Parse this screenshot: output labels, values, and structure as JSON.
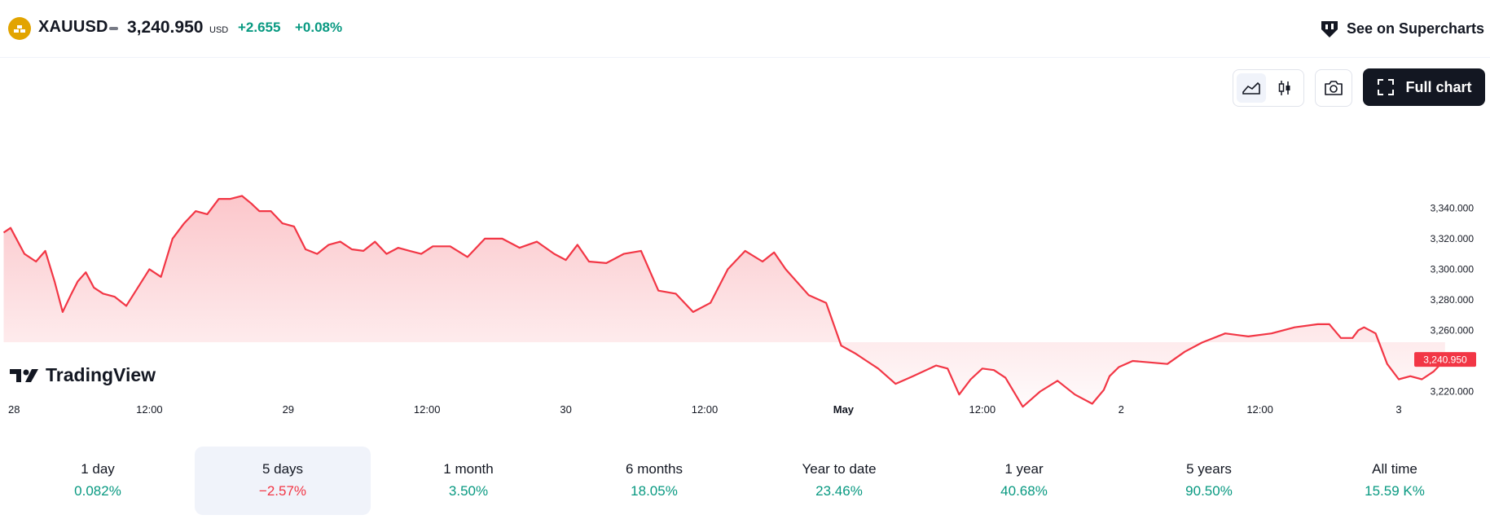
{
  "header": {
    "symbol": "XAUUSD",
    "price": "3,240.950",
    "currency": "USD",
    "change": "+2.655",
    "change_percent": "+0.08%",
    "supercharts_label": "See on Supercharts",
    "icons": [
      "gold-symbol-icon",
      "market-flat-icon",
      "supercharts-icon"
    ]
  },
  "toolbar": {
    "full_chart_label": "Full chart",
    "icons": [
      "area-chart-icon",
      "candles-icon",
      "camera-icon",
      "fullscreen-icon"
    ]
  },
  "watermark": "TradingView",
  "colors": {
    "line": "#f23645",
    "positive": "#089981",
    "negative": "#f23645",
    "accent_gold": "#e2a400"
  },
  "chart_data": {
    "type": "area",
    "title": "",
    "xlabel": "",
    "ylabel": "",
    "y_tick_labels": [
      "3,340.000",
      "3,320.000",
      "3,300.000",
      "3,280.000",
      "3,260.000",
      "3,220.000"
    ],
    "y_ticks": [
      3340,
      3320,
      3300,
      3280,
      3260,
      3220
    ],
    "ylim": [
      3200,
      3360
    ],
    "x_tick_labels": [
      "28",
      "12:00",
      "29",
      "12:00",
      "30",
      "12:00",
      "May",
      "12:00",
      "2",
      "12:00",
      "3"
    ],
    "x_tick_hours": [
      0,
      12,
      24,
      36,
      48,
      60,
      72,
      84,
      96,
      108,
      120
    ],
    "last_price_label": "3,240.950",
    "last_price": 3240.95,
    "grid": false,
    "series": [
      {
        "x": [
          -0.6,
          0.0,
          1.2,
          2.2,
          3.0,
          3.8,
          4.5,
          5.2,
          5.8,
          6.5,
          7.2,
          8.0,
          9.0,
          10.0,
          11.0,
          12.0,
          13.0,
          14.0,
          15.0,
          16.0,
          17.0,
          18.0,
          19.0,
          20.0,
          20.8,
          21.5,
          22.5,
          23.5,
          24.5,
          25.5,
          26.5,
          27.5,
          28.5,
          29.5,
          30.5,
          31.5,
          32.5,
          33.5,
          34.5,
          35.5,
          36.5,
          38.0,
          39.5,
          41.0,
          42.5,
          44.0,
          45.5,
          47.0,
          48.0,
          49.0,
          50.0,
          51.5,
          53.0,
          54.5,
          56.0,
          57.5,
          59.0,
          60.5,
          62.0,
          63.5,
          65.0,
          66.0,
          67.0,
          69.0,
          70.5,
          71.8,
          73.0,
          74.0,
          75.0,
          76.5,
          78.0,
          80.0,
          81.0,
          82.0,
          83.0,
          84.0,
          85.0,
          86.0,
          87.5,
          89.0,
          90.5,
          92.0,
          93.5,
          94.5,
          95.0,
          95.8,
          97.0,
          98.5,
          100.0,
          101.5,
          103.0,
          105.0,
          107.0,
          109.0,
          111.0,
          113.0,
          114.0,
          115.0,
          116.0,
          116.5,
          117.0,
          118.0,
          119.0,
          120.0,
          121.0,
          122.0,
          123.0,
          124.0
        ],
        "y": [
          3324,
          3327,
          3310,
          3305,
          3312,
          3292,
          3272,
          3283,
          3292,
          3298,
          3288,
          3284,
          3282,
          3276,
          3288,
          3300,
          3295,
          3320,
          3330,
          3338,
          3336,
          3346,
          3346,
          3348,
          3343,
          3338,
          3338,
          3330,
          3328,
          3313,
          3310,
          3316,
          3318,
          3313,
          3312,
          3318,
          3310,
          3314,
          3312,
          3310,
          3315,
          3315,
          3308,
          3320,
          3320,
          3314,
          3318,
          3310,
          3306,
          3316,
          3305,
          3304,
          3310,
          3312,
          3286,
          3284,
          3272,
          3278,
          3300,
          3312,
          3305,
          3311,
          3300,
          3283,
          3278,
          3250,
          3245,
          3240,
          3235,
          3225,
          3230,
          3237,
          3235,
          3218,
          3228,
          3235,
          3234,
          3229,
          3210,
          3220,
          3227,
          3218,
          3212,
          3221,
          3230,
          3236,
          3240,
          3239,
          3238,
          3246,
          3252,
          3258,
          3256,
          3258,
          3262,
          3264,
          3264,
          3255,
          3255,
          3260,
          3262,
          3258,
          3238,
          3228,
          3230,
          3228,
          3233,
          3240.95
        ]
      }
    ]
  },
  "timeframes": [
    {
      "label": "1 day",
      "value": "0.082%",
      "trend": "up",
      "active": false
    },
    {
      "label": "5 days",
      "value": "−2.57%",
      "trend": "down",
      "active": true
    },
    {
      "label": "1 month",
      "value": "3.50%",
      "trend": "up",
      "active": false
    },
    {
      "label": "6 months",
      "value": "18.05%",
      "trend": "up",
      "active": false
    },
    {
      "label": "Year to date",
      "value": "23.46%",
      "trend": "up",
      "active": false
    },
    {
      "label": "1 year",
      "value": "40.68%",
      "trend": "up",
      "active": false
    },
    {
      "label": "5 years",
      "value": "90.50%",
      "trend": "up",
      "active": false
    },
    {
      "label": "All time",
      "value": "15.59 K%",
      "trend": "up",
      "active": false
    }
  ]
}
